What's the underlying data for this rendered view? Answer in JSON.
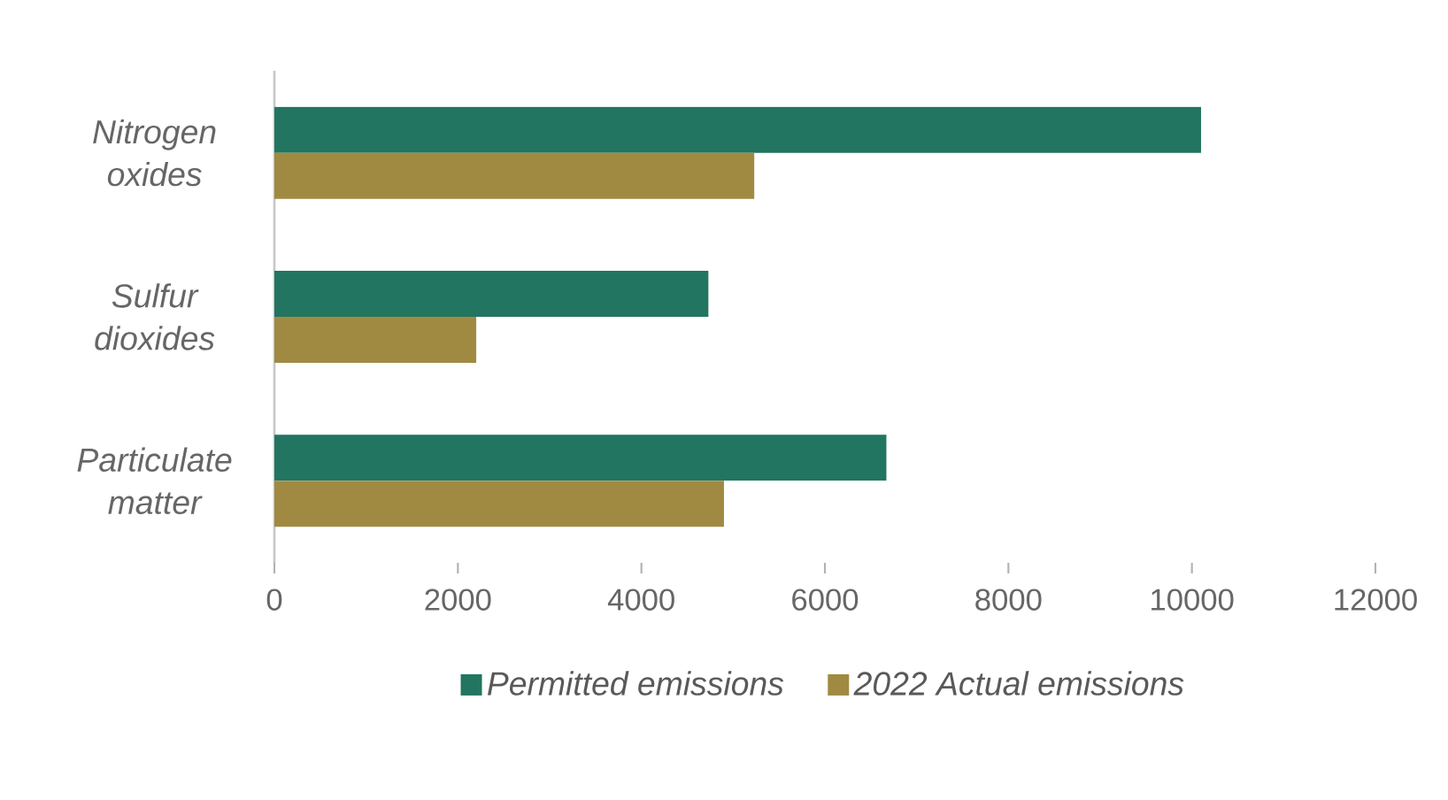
{
  "chart_data": {
    "type": "bar",
    "orientation": "horizontal",
    "categories": [
      "Nitrogen oxides",
      "Sulfur dioxides",
      "Particulate matter"
    ],
    "series": [
      {
        "name": "Permitted emissions",
        "color": "#227560",
        "values": [
          10100,
          4730,
          6670
        ]
      },
      {
        "name": "2022 Actual emissions",
        "color": "#a08a42",
        "values": [
          5230,
          2200,
          4900
        ]
      }
    ],
    "xlim": [
      0,
      12000
    ],
    "xticks": [
      0,
      2000,
      4000,
      6000,
      8000,
      10000,
      12000
    ],
    "grid": false,
    "legend": "bottom"
  }
}
